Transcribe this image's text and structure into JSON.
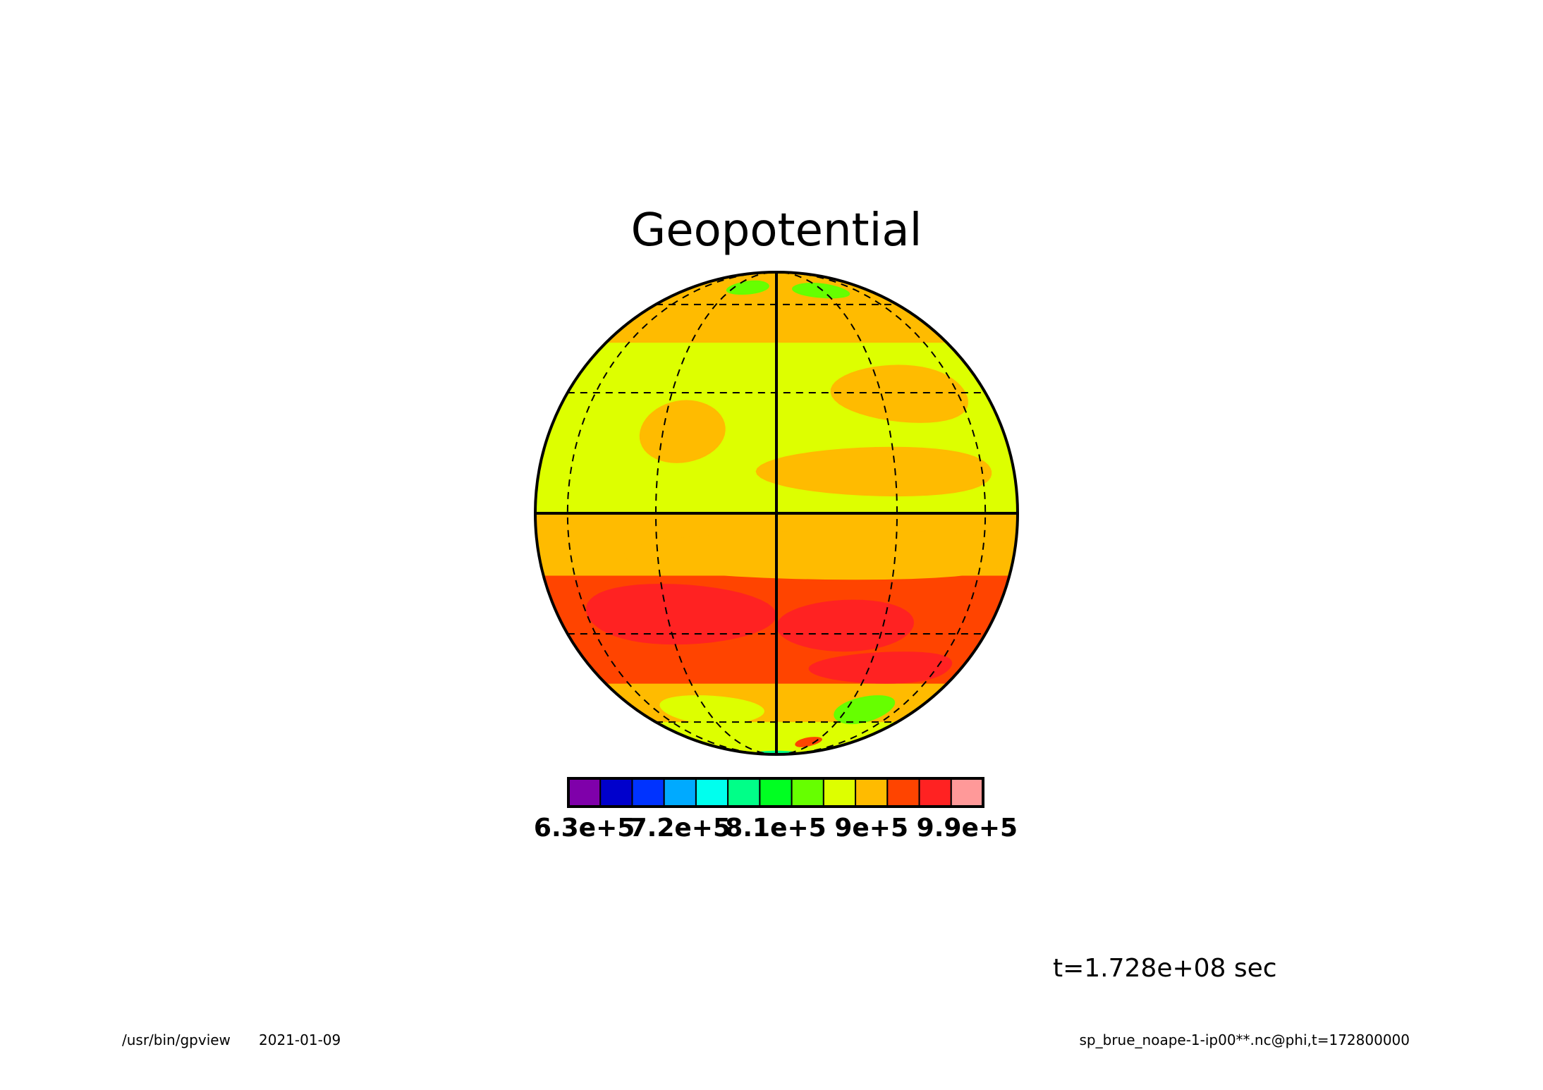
{
  "chart_data": {
    "type": "heatmap",
    "projection": "orthographic",
    "title": "Geopotential",
    "field": "phi",
    "levels": [
      630000,
      660000,
      690000,
      720000,
      750000,
      780000,
      810000,
      840000,
      870000,
      900000,
      930000,
      960000,
      990000
    ],
    "tick_labels": [
      "6.3e+5",
      "7.2e+5",
      "8.1e+5",
      "9e+5",
      "9.9e+5"
    ],
    "tick_values": [
      630000,
      720000,
      810000,
      900000,
      990000
    ],
    "colors": [
      "#7f00aa",
      "#0000cc",
      "#0033ff",
      "#00aaff",
      "#00ffee",
      "#00ff88",
      "#00ff22",
      "#66ff00",
      "#ddff00",
      "#ffbb00",
      "#ff4400",
      "#ff2222",
      "#ff9999"
    ],
    "bands": [
      {
        "lat_from": 90,
        "lat_to": 60,
        "level_index": 9
      },
      {
        "lat_from": 60,
        "lat_to": 45,
        "level_index": 9
      },
      {
        "lat_from": 45,
        "lat_to": 0,
        "level_index": 8
      },
      {
        "lat_from": 0,
        "lat_to": -15,
        "level_index": 9
      },
      {
        "lat_from": -15,
        "lat_to": -45,
        "level_index": 10
      },
      {
        "lat_from": -45,
        "lat_to": -60,
        "level_index": 9
      },
      {
        "lat_from": -60,
        "lat_to": -90,
        "level_index": 8
      }
    ],
    "patches": [
      {
        "lon": -25,
        "lat": 20,
        "rlon": 12,
        "rlat": 8,
        "level_index": 9
      },
      {
        "lon": 40,
        "lat": 30,
        "rlon": 25,
        "rlat": 8,
        "level_index": 9
      },
      {
        "lon": 30,
        "lat": 10,
        "rlon": 35,
        "rlat": 6,
        "level_index": 9
      },
      {
        "lon": -50,
        "lat": 35,
        "rlon": 20,
        "rlat": 8,
        "level_index": 8
      },
      {
        "lon": -20,
        "lat": 70,
        "rlon": 15,
        "rlat": 5,
        "level_index": 7
      },
      {
        "lon": 30,
        "lat": 68,
        "rlon": 20,
        "rlat": 5,
        "level_index": 7
      },
      {
        "lon": -30,
        "lat": -25,
        "rlon": 30,
        "rlat": 8,
        "level_index": 11
      },
      {
        "lon": 20,
        "lat": -28,
        "rlon": 20,
        "rlat": 7,
        "level_index": 11
      },
      {
        "lon": 40,
        "lat": -40,
        "rlon": 30,
        "rlat": 5,
        "level_index": 11
      },
      {
        "lon": 20,
        "lat": -10,
        "rlon": 60,
        "rlat": 6,
        "level_index": 9
      },
      {
        "lon": 40,
        "lat": -55,
        "rlon": 15,
        "rlat": 6,
        "level_index": 7
      },
      {
        "lon": 25,
        "lat": -72,
        "rlon": 10,
        "rlat": 4,
        "level_index": 10
      },
      {
        "lon": -30,
        "lat": -55,
        "rlon": 25,
        "rlat": 6,
        "level_index": 8
      },
      {
        "lon": 0,
        "lat": -85,
        "rlon": 40,
        "rlat": 5,
        "level_index": 5
      }
    ],
    "graticule": {
      "meridians": [
        -90,
        -60,
        -30,
        0,
        30,
        60,
        90
      ],
      "parallels": [
        -60,
        -30,
        0,
        30,
        60
      ]
    },
    "legend_placement": "bottom"
  },
  "time_label": "t=1.728e+08 sec",
  "footer": {
    "program": "/usr/bin/gpview",
    "date": "2021-01-09",
    "source": "sp_brue_noape-1-ip00**.nc@phi,t=172800000"
  }
}
